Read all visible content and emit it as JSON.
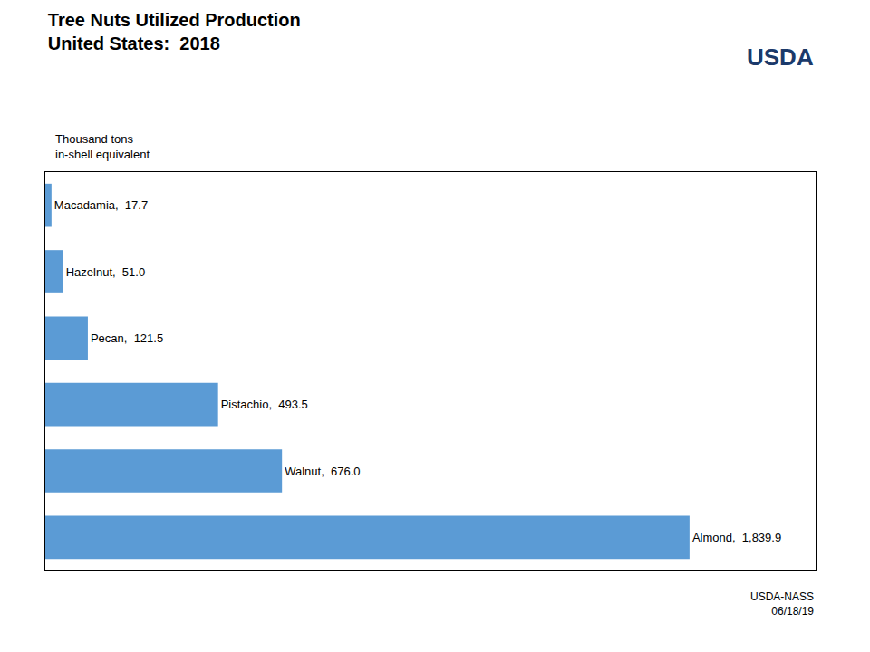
{
  "chart_data": {
    "type": "bar",
    "orientation": "horizontal",
    "title": "Tree Nuts Utilized Production\nUnited States:  2018",
    "subtitle": "Thousand tons\nin-shell equivalent",
    "categories": [
      "Almond",
      "Walnut",
      "Pistachio",
      "Pecan",
      "Hazelnut",
      "Macadamia"
    ],
    "values": [
      1839.9,
      676.0,
      493.5,
      121.5,
      51.0,
      17.7
    ],
    "value_labels": [
      "Almond,  1,839.9",
      "Walnut,  676.0",
      "Pistachio,  493.5",
      "Pecan,  121.5",
      "Hazelnut,  51.0",
      "Macadamia,  17.7"
    ],
    "data_labels": true,
    "color": "#5B9BD5",
    "xlim": [
      0,
      2200
    ],
    "tick_labels": false,
    "grid": false,
    "annotations": [
      "USDA",
      "USDA-NASS\n06/18/19"
    ]
  }
}
